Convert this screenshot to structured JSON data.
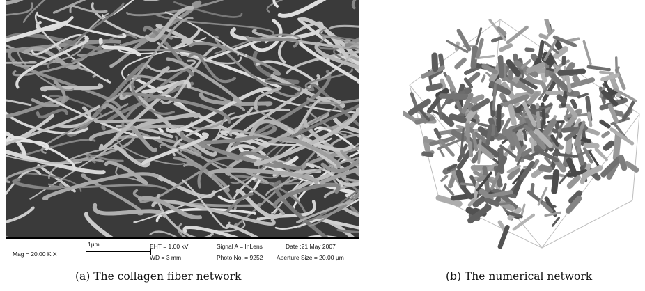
{
  "figure": {
    "panel_a": {
      "caption": "(a) The collagen fiber network",
      "databar": {
        "mag": "Mag = 20.00 K X",
        "scale_label": "1μm",
        "eht": "EHT = 1.00 kV",
        "wd": "WD =  3 mm",
        "signal": "Signal A = InLens",
        "photo_no": "Photo No. = 9252",
        "date": "Date :21 May 2007",
        "aperture": "Aperture Size = 20.00 μm"
      }
    },
    "panel_b": {
      "caption": "(b) The numerical network"
    }
  }
}
